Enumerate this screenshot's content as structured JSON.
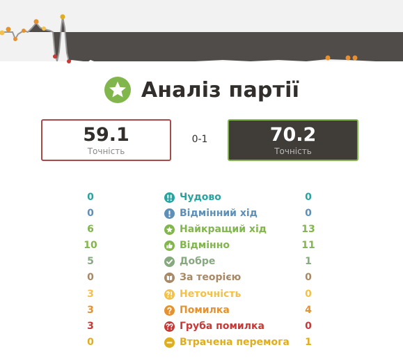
{
  "title": "Аналіз партії",
  "players": {
    "white": {
      "accuracy": "59.1",
      "label": "Точність"
    },
    "black": {
      "accuracy": "70.2",
      "label": "Точність"
    }
  },
  "result": "0-1",
  "classifications": [
    {
      "key": "brilliant",
      "label": "Чудово",
      "white": "0",
      "black": "0",
      "color": "#26a5a0",
      "icon": "double-exclamation-icon"
    },
    {
      "key": "great",
      "label": "Відмінний хід",
      "white": "0",
      "black": "0",
      "color": "#5d8fb8",
      "icon": "exclamation-icon"
    },
    {
      "key": "best",
      "label": "Найкращий хід",
      "white": "6",
      "black": "13",
      "color": "#81b64c",
      "icon": "star-icon"
    },
    {
      "key": "excellent",
      "label": "Відмінно",
      "white": "10",
      "black": "11",
      "color": "#81b64c",
      "icon": "thumbs-up-icon"
    },
    {
      "key": "good",
      "label": "Добре",
      "white": "5",
      "black": "1",
      "color": "#87a97f",
      "icon": "check-icon"
    },
    {
      "key": "book",
      "label": "За теорією",
      "white": "0",
      "black": "0",
      "color": "#a88865",
      "icon": "book-icon"
    },
    {
      "key": "inaccuracy",
      "label": "Неточність",
      "white": "3",
      "black": "0",
      "color": "#f2c04b",
      "icon": "question-exclamation-icon"
    },
    {
      "key": "mistake",
      "label": "Помилка",
      "white": "3",
      "black": "4",
      "color": "#e5912f",
      "icon": "question-icon"
    },
    {
      "key": "blunder",
      "label": "Груба помилка",
      "white": "3",
      "black": "0",
      "color": "#c53a36",
      "icon": "double-question-icon"
    },
    {
      "key": "miss",
      "label": "Втрачена перемога",
      "white": "0",
      "black": "1",
      "color": "#e0ae1c",
      "icon": "minus-icon"
    }
  ],
  "colors": {
    "white_border": "#a84a47",
    "black_border": "#81b64c",
    "black_bg": "#403d39",
    "graph_dark": "#524f4c",
    "graph_light": "#f2f2f2"
  }
}
